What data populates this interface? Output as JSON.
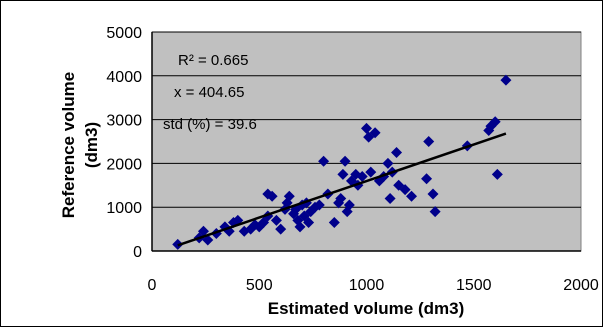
{
  "chart_data": {
    "type": "scatter",
    "xlabel": "Estimated volume (dm3)",
    "ylabel_line1": "Reference volume",
    "ylabel_line2": "(dm3)",
    "xlim": [
      0,
      2000
    ],
    "ylim": [
      0,
      5000
    ],
    "x_ticks": [
      0,
      500,
      1000,
      1500,
      2000
    ],
    "y_ticks": [
      0,
      1000,
      2000,
      3000,
      4000,
      5000
    ],
    "x_tick_labels": [
      "0",
      "500",
      "1000",
      "1500",
      "2000"
    ],
    "y_tick_labels": [
      "0",
      "1000",
      "2000",
      "3000",
      "4000",
      "5000"
    ],
    "grid": "horizontal",
    "legend": "none",
    "annotations": {
      "r2": "R² = 0.665",
      "x": "x = 404.65",
      "std": "std (%) = 39.6"
    },
    "trendline": {
      "x": [
        120,
        1650
      ],
      "y": [
        130,
        2680
      ]
    },
    "colors": {
      "plot_background": "#c0c0c0",
      "marker": "#00008b",
      "trendline": "#000000",
      "grid": "#000000"
    },
    "points": [
      [
        120,
        150
      ],
      [
        220,
        300
      ],
      [
        240,
        450
      ],
      [
        260,
        250
      ],
      [
        300,
        400
      ],
      [
        340,
        550
      ],
      [
        360,
        450
      ],
      [
        380,
        650
      ],
      [
        400,
        700
      ],
      [
        430,
        450
      ],
      [
        460,
        500
      ],
      [
        480,
        600
      ],
      [
        500,
        550
      ],
      [
        520,
        650
      ],
      [
        540,
        800
      ],
      [
        540,
        1300
      ],
      [
        560,
        1250
      ],
      [
        580,
        700
      ],
      [
        600,
        500
      ],
      [
        620,
        950
      ],
      [
        630,
        1100
      ],
      [
        640,
        1250
      ],
      [
        660,
        850
      ],
      [
        670,
        950
      ],
      [
        680,
        700
      ],
      [
        690,
        550
      ],
      [
        700,
        1050
      ],
      [
        710,
        800
      ],
      [
        720,
        1100
      ],
      [
        730,
        650
      ],
      [
        740,
        900
      ],
      [
        760,
        1000
      ],
      [
        780,
        1050
      ],
      [
        800,
        2050
      ],
      [
        820,
        1300
      ],
      [
        850,
        650
      ],
      [
        870,
        1100
      ],
      [
        880,
        1200
      ],
      [
        890,
        1750
      ],
      [
        900,
        2050
      ],
      [
        910,
        900
      ],
      [
        920,
        1050
      ],
      [
        930,
        1600
      ],
      [
        950,
        1750
      ],
      [
        960,
        1500
      ],
      [
        980,
        1700
      ],
      [
        1000,
        2800
      ],
      [
        1010,
        2600
      ],
      [
        1020,
        1800
      ],
      [
        1040,
        2700
      ],
      [
        1060,
        1600
      ],
      [
        1080,
        1700
      ],
      [
        1100,
        2000
      ],
      [
        1110,
        1200
      ],
      [
        1120,
        1800
      ],
      [
        1140,
        2250
      ],
      [
        1150,
        1500
      ],
      [
        1180,
        1400
      ],
      [
        1210,
        1250
      ],
      [
        1280,
        1650
      ],
      [
        1290,
        2500
      ],
      [
        1310,
        1300
      ],
      [
        1320,
        900
      ],
      [
        1470,
        2400
      ],
      [
        1570,
        2750
      ],
      [
        1580,
        2850
      ],
      [
        1600,
        2950
      ],
      [
        1610,
        1750
      ],
      [
        1650,
        3900
      ]
    ]
  }
}
